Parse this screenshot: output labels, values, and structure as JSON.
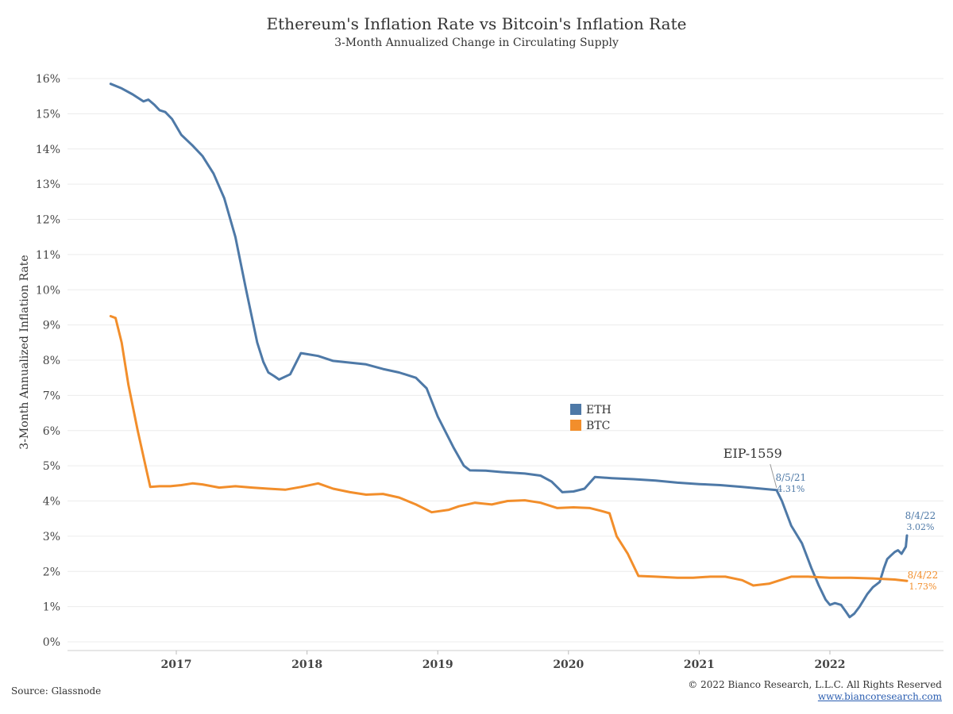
{
  "chart_data": {
    "type": "line",
    "title": "Ethereum's Inflation Rate vs Bitcoin's Inflation Rate",
    "subtitle": "3-Month Annualized Change in Circulating Supply",
    "ylabel": "3-Month Annualized Inflation Rate",
    "xlabel": "",
    "ylim": [
      0,
      16
    ],
    "y_ticks": [
      "0%",
      "1%",
      "2%",
      "3%",
      "4%",
      "5%",
      "6%",
      "7%",
      "8%",
      "9%",
      "10%",
      "11%",
      "12%",
      "13%",
      "14%",
      "15%",
      "16%"
    ],
    "x_ticks": [
      "2017",
      "2018",
      "2019",
      "2020",
      "2021",
      "2022"
    ],
    "grid": "horizontal",
    "legend_position": "center",
    "series": [
      {
        "name": "ETH",
        "color": "#4e79a7",
        "points": [
          [
            "2016-07-01",
            15.85
          ],
          [
            "2016-08-01",
            15.72
          ],
          [
            "2016-09-01",
            15.55
          ],
          [
            "2016-10-01",
            15.35
          ],
          [
            "2016-10-15",
            15.4
          ],
          [
            "2016-11-01",
            15.25
          ],
          [
            "2016-11-15",
            15.1
          ],
          [
            "2016-12-01",
            15.05
          ],
          [
            "2016-12-20",
            14.85
          ],
          [
            "2017-01-15",
            14.4
          ],
          [
            "2017-02-15",
            14.1
          ],
          [
            "2017-03-15",
            13.8
          ],
          [
            "2017-04-15",
            13.3
          ],
          [
            "2017-05-15",
            12.6
          ],
          [
            "2017-06-15",
            11.5
          ],
          [
            "2017-07-15",
            10.0
          ],
          [
            "2017-08-15",
            8.5
          ],
          [
            "2017-09-01",
            7.95
          ],
          [
            "2017-09-15",
            7.65
          ],
          [
            "2017-10-01",
            7.55
          ],
          [
            "2017-10-15",
            7.45
          ],
          [
            "2017-11-15",
            7.6
          ],
          [
            "2017-12-15",
            8.2
          ],
          [
            "2018-02-01",
            8.12
          ],
          [
            "2018-03-15",
            7.98
          ],
          [
            "2018-05-01",
            7.93
          ],
          [
            "2018-06-15",
            7.88
          ],
          [
            "2018-08-01",
            7.75
          ],
          [
            "2018-09-15",
            7.65
          ],
          [
            "2018-11-01",
            7.5
          ],
          [
            "2018-12-01",
            7.2
          ],
          [
            "2019-01-01",
            6.4
          ],
          [
            "2019-02-15",
            5.5
          ],
          [
            "2019-03-15",
            5.0
          ],
          [
            "2019-04-01",
            4.87
          ],
          [
            "2019-05-15",
            4.86
          ],
          [
            "2019-07-01",
            4.82
          ],
          [
            "2019-09-01",
            4.78
          ],
          [
            "2019-10-15",
            4.72
          ],
          [
            "2019-11-15",
            4.55
          ],
          [
            "2019-12-15",
            4.25
          ],
          [
            "2020-01-15",
            4.27
          ],
          [
            "2020-02-15",
            4.35
          ],
          [
            "2020-03-15",
            4.68
          ],
          [
            "2020-05-01",
            4.65
          ],
          [
            "2020-07-01",
            4.62
          ],
          [
            "2020-09-01",
            4.58
          ],
          [
            "2020-11-01",
            4.52
          ],
          [
            "2021-01-01",
            4.48
          ],
          [
            "2021-03-01",
            4.45
          ],
          [
            "2021-05-01",
            4.4
          ],
          [
            "2021-08-05",
            4.31
          ],
          [
            "2021-08-20",
            4.0
          ],
          [
            "2021-09-15",
            3.3
          ],
          [
            "2021-10-15",
            2.8
          ],
          [
            "2021-11-10",
            2.1
          ],
          [
            "2021-12-01",
            1.6
          ],
          [
            "2021-12-20",
            1.2
          ],
          [
            "2022-01-01",
            1.05
          ],
          [
            "2022-01-15",
            1.1
          ],
          [
            "2022-02-01",
            1.05
          ],
          [
            "2022-02-15",
            0.85
          ],
          [
            "2022-02-25",
            0.7
          ],
          [
            "2022-03-10",
            0.8
          ],
          [
            "2022-03-25",
            1.0
          ],
          [
            "2022-04-15",
            1.35
          ],
          [
            "2022-05-01",
            1.55
          ],
          [
            "2022-05-20",
            1.7
          ],
          [
            "2022-06-01",
            2.1
          ],
          [
            "2022-06-10",
            2.35
          ],
          [
            "2022-06-20",
            2.45
          ],
          [
            "2022-07-01",
            2.55
          ],
          [
            "2022-07-10",
            2.6
          ],
          [
            "2022-07-20",
            2.5
          ],
          [
            "2022-08-01",
            2.7
          ],
          [
            "2022-08-04",
            3.02
          ]
        ],
        "end_label": {
          "date": "8/4/22",
          "value": "3.02%"
        }
      },
      {
        "name": "BTC",
        "color": "#f28e2b",
        "points": [
          [
            "2016-07-01",
            9.25
          ],
          [
            "2016-07-15",
            9.2
          ],
          [
            "2016-08-01",
            8.5
          ],
          [
            "2016-08-20",
            7.3
          ],
          [
            "2016-09-15",
            6.0
          ],
          [
            "2016-10-10",
            4.85
          ],
          [
            "2016-10-20",
            4.4
          ],
          [
            "2016-11-15",
            4.42
          ],
          [
            "2016-12-15",
            4.42
          ],
          [
            "2017-01-15",
            4.45
          ],
          [
            "2017-02-15",
            4.5
          ],
          [
            "2017-03-15",
            4.47
          ],
          [
            "2017-05-01",
            4.38
          ],
          [
            "2017-06-15",
            4.42
          ],
          [
            "2017-08-01",
            4.38
          ],
          [
            "2017-09-15",
            4.35
          ],
          [
            "2017-11-01",
            4.32
          ],
          [
            "2017-12-15",
            4.4
          ],
          [
            "2018-02-01",
            4.5
          ],
          [
            "2018-03-15",
            4.35
          ],
          [
            "2018-05-01",
            4.25
          ],
          [
            "2018-06-15",
            4.18
          ],
          [
            "2018-08-01",
            4.2
          ],
          [
            "2018-09-15",
            4.1
          ],
          [
            "2018-11-01",
            3.9
          ],
          [
            "2018-12-15",
            3.68
          ],
          [
            "2019-02-01",
            3.75
          ],
          [
            "2019-03-01",
            3.85
          ],
          [
            "2019-04-15",
            3.95
          ],
          [
            "2019-06-01",
            3.9
          ],
          [
            "2019-07-15",
            4.0
          ],
          [
            "2019-09-01",
            4.02
          ],
          [
            "2019-10-15",
            3.95
          ],
          [
            "2019-12-01",
            3.8
          ],
          [
            "2020-01-15",
            3.82
          ],
          [
            "2020-03-01",
            3.8
          ],
          [
            "2020-04-01",
            3.72
          ],
          [
            "2020-04-25",
            3.65
          ],
          [
            "2020-05-15",
            3.0
          ],
          [
            "2020-06-15",
            2.5
          ],
          [
            "2020-07-15",
            1.87
          ],
          [
            "2020-09-01",
            1.85
          ],
          [
            "2020-11-01",
            1.82
          ],
          [
            "2020-12-15",
            1.82
          ],
          [
            "2021-02-01",
            1.85
          ],
          [
            "2021-03-15",
            1.85
          ],
          [
            "2021-05-01",
            1.75
          ],
          [
            "2021-06-01",
            1.6
          ],
          [
            "2021-07-15",
            1.65
          ],
          [
            "2021-08-15",
            1.75
          ],
          [
            "2021-09-15",
            1.85
          ],
          [
            "2021-11-01",
            1.85
          ],
          [
            "2022-01-01",
            1.82
          ],
          [
            "2022-03-01",
            1.82
          ],
          [
            "2022-05-01",
            1.8
          ],
          [
            "2022-07-01",
            1.77
          ],
          [
            "2022-08-04",
            1.73
          ]
        ],
        "end_label": {
          "date": "8/4/22",
          "value": "1.73%"
        }
      }
    ],
    "annotations": [
      {
        "text": "EIP-1559",
        "date": "2021-08-05"
      },
      {
        "date_text": "8/5/21",
        "value_text": "4.31%",
        "date": "2021-08-05",
        "value": 4.31
      }
    ]
  },
  "footer": {
    "source": "Source: Glassnode",
    "copyright": "© 2022 Bianco Research, L.L.C. All Rights Reserved",
    "website": "www.biancoresearch.com"
  }
}
